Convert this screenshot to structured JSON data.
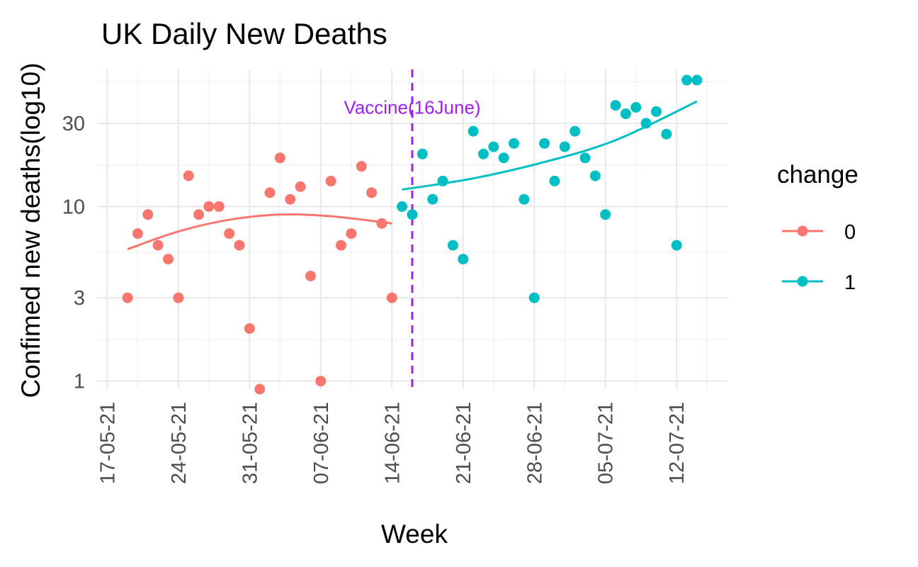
{
  "chart_data": {
    "type": "scatter",
    "title": "UK Daily New Deaths",
    "xlabel": "Week",
    "ylabel": "Confimed new deaths(log10)",
    "y_scale": "log10",
    "xlim": [
      "2021-05-16",
      "2021-07-17"
    ],
    "ylim": [
      0.9,
      61
    ],
    "x_ticks": [
      {
        "date": "2021-05-17",
        "label": "17-05-21"
      },
      {
        "date": "2021-05-24",
        "label": "24-05-21"
      },
      {
        "date": "2021-05-31",
        "label": "31-05-21"
      },
      {
        "date": "2021-06-07",
        "label": "07-06-21"
      },
      {
        "date": "2021-06-14",
        "label": "14-06-21"
      },
      {
        "date": "2021-06-21",
        "label": "21-06-21"
      },
      {
        "date": "2021-06-28",
        "label": "28-06-21"
      },
      {
        "date": "2021-07-05",
        "label": "05-07-21"
      },
      {
        "date": "2021-07-12",
        "label": "12-07-21"
      }
    ],
    "y_ticks": [
      {
        "value": 1,
        "label": "1"
      },
      {
        "value": 3,
        "label": "3"
      },
      {
        "value": 10,
        "label": "10"
      },
      {
        "value": 30,
        "label": "30"
      }
    ],
    "grid": true,
    "legend": {
      "title": "change",
      "position": "right"
    },
    "series": [
      {
        "name": "0",
        "color": "#F8766D",
        "x": [
          "2021-05-19",
          "2021-05-20",
          "2021-05-21",
          "2021-05-22",
          "2021-05-23",
          "2021-05-24",
          "2021-05-25",
          "2021-05-26",
          "2021-05-27",
          "2021-05-28",
          "2021-05-29",
          "2021-05-30",
          "2021-05-31",
          "2021-06-01",
          "2021-06-02",
          "2021-06-03",
          "2021-06-04",
          "2021-06-05",
          "2021-06-06",
          "2021-06-07",
          "2021-06-08",
          "2021-06-09",
          "2021-06-10",
          "2021-06-11",
          "2021-06-12",
          "2021-06-13",
          "2021-06-14"
        ],
        "y": [
          3,
          7,
          9,
          6,
          5,
          3,
          15,
          9,
          10,
          10,
          7,
          6,
          2,
          0.9,
          12,
          19,
          11,
          13,
          4,
          1,
          14,
          6,
          7,
          17,
          12,
          8,
          3
        ],
        "trend": {
          "x": [
            "2021-05-19",
            "2021-05-24",
            "2021-05-29",
            "2021-06-03",
            "2021-06-08",
            "2021-06-14"
          ],
          "y": [
            5.7,
            7.2,
            8.4,
            9.0,
            8.8,
            8.0
          ]
        }
      },
      {
        "name": "1",
        "color": "#00BFC4",
        "x": [
          "2021-06-15",
          "2021-06-16",
          "2021-06-17",
          "2021-06-18",
          "2021-06-19",
          "2021-06-20",
          "2021-06-21",
          "2021-06-22",
          "2021-06-23",
          "2021-06-24",
          "2021-06-25",
          "2021-06-26",
          "2021-06-27",
          "2021-06-28",
          "2021-06-29",
          "2021-06-30",
          "2021-07-01",
          "2021-07-02",
          "2021-07-03",
          "2021-07-04",
          "2021-07-05",
          "2021-07-06",
          "2021-07-07",
          "2021-07-08",
          "2021-07-09",
          "2021-07-10",
          "2021-07-11",
          "2021-07-12",
          "2021-07-13",
          "2021-07-14"
        ],
        "y": [
          10,
          9,
          20,
          11,
          14,
          6,
          5,
          27,
          20,
          22,
          19,
          23,
          11,
          3,
          23,
          14,
          22,
          27,
          19,
          15,
          9,
          38,
          34,
          37,
          30,
          35,
          26,
          6,
          53,
          53
        ],
        "trend": {
          "x": [
            "2021-06-15",
            "2021-06-22",
            "2021-06-29",
            "2021-07-06",
            "2021-07-14"
          ],
          "y": [
            12.5,
            14.5,
            18.0,
            24.0,
            40.0
          ]
        }
      }
    ],
    "annotations": [
      {
        "type": "vline",
        "x": "2021-06-16",
        "color": "#A020F0",
        "dash": true
      },
      {
        "type": "text",
        "x": "2021-06-16",
        "y": 34,
        "text": "Vaccine(16June)",
        "color": "#A020F0"
      }
    ]
  }
}
